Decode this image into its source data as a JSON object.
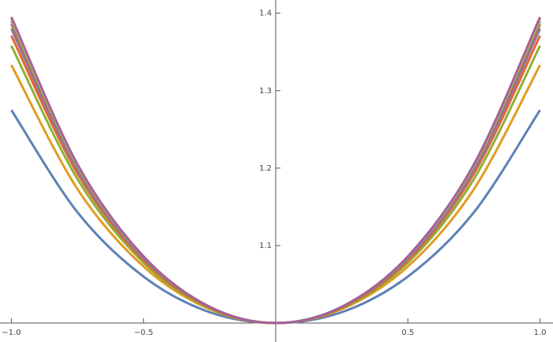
{
  "chart_data": {
    "type": "line",
    "x": [
      -1,
      -0.75,
      -0.5,
      -0.25,
      0,
      0.25,
      0.5,
      0.75,
      1
    ],
    "series": [
      {
        "color": "#5E81B5",
        "values": [
          1.275,
          1.143,
          1.06,
          1.014,
          1.0,
          1.014,
          1.06,
          1.143,
          1.275
        ]
      },
      {
        "color": "#E19C24",
        "values": [
          1.333,
          1.173,
          1.073,
          1.018,
          1.0,
          1.018,
          1.073,
          1.173,
          1.333
        ]
      },
      {
        "color": "#8FB032",
        "values": [
          1.358,
          1.186,
          1.078,
          1.019,
          1.0,
          1.019,
          1.078,
          1.186,
          1.358
        ]
      },
      {
        "color": "#EB6235",
        "values": [
          1.371,
          1.193,
          1.081,
          1.02,
          1.0,
          1.02,
          1.081,
          1.193,
          1.371
        ]
      },
      {
        "color": "#8778B3",
        "values": [
          1.38,
          1.197,
          1.083,
          1.02,
          1.0,
          1.02,
          1.083,
          1.197,
          1.38
        ]
      },
      {
        "color": "#C56E1A",
        "values": [
          1.386,
          1.2,
          1.084,
          1.02,
          1.0,
          1.02,
          1.084,
          1.2,
          1.386
        ]
      },
      {
        "color": "#5D9EC7",
        "values": [
          1.39,
          1.202,
          1.085,
          1.021,
          1.0,
          1.021,
          1.085,
          1.202,
          1.39
        ]
      },
      {
        "color": "#FFBF00",
        "values": [
          1.393,
          1.204,
          1.086,
          1.021,
          1.0,
          1.021,
          1.086,
          1.204,
          1.393
        ]
      },
      {
        "color": "#A5609D",
        "values": [
          1.395,
          1.205,
          1.086,
          1.021,
          1.0,
          1.021,
          1.086,
          1.205,
          1.395
        ]
      }
    ],
    "xlim": [
      -1.043,
      1.049
    ],
    "ylim": [
      1.0,
      1.417
    ],
    "xticks": [
      {
        "value": -1,
        "label": "−1.0"
      },
      {
        "value": -0.5,
        "label": "−0.5"
      },
      0.5,
      {
        "value": 1,
        "label": "1.0"
      }
    ],
    "yticks": [
      1.1,
      1.2,
      1.3,
      1.4
    ]
  }
}
